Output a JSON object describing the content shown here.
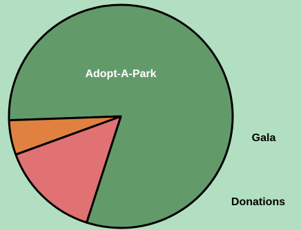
{
  "chart_data": {
    "type": "pie",
    "title": "",
    "slices": [
      {
        "label": "Adopt-A-Park",
        "value": 80.5,
        "color": "#639a6a",
        "label_color": "#ffffff",
        "label_inside": true
      },
      {
        "label": "Donations",
        "value": 14.5,
        "color": "#e07274",
        "label_color": "#000000",
        "label_inside": false
      },
      {
        "label": "Gala",
        "value": 5.0,
        "color": "#e08142",
        "label_color": "#000000",
        "label_inside": false
      }
    ],
    "start_angle_deg": 178,
    "direction": "clockwise",
    "legend": "none",
    "background": "#b2dfc1",
    "border_color": "#000000"
  }
}
